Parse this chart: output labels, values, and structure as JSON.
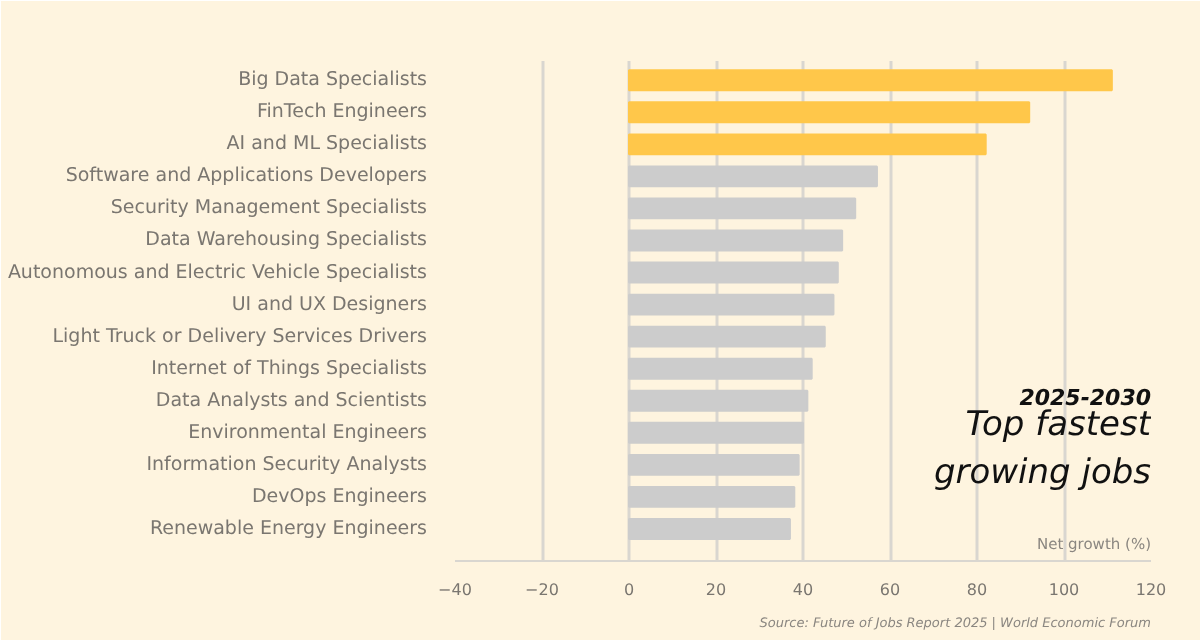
{
  "chart_data": {
    "type": "bar",
    "orientation": "horizontal",
    "title": "Top fastest growing jobs",
    "subtitle": "2025-2030",
    "xlabel": "Net growth (%)",
    "categories": [
      "Big Data Specialists",
      "FinTech Engineers",
      "AI and ML Specialists",
      "Software and Applications Developers",
      "Security Management Specialists",
      "Data Warehousing Specialists",
      "Autonomous and Electric Vehicle Specialists",
      "UI and UX Designers",
      "Light Truck or Delivery Services Drivers",
      "Internet of Things Specialists",
      "Data Analysts and Scientists",
      "Environmental Engineers",
      "Information Security Analysts",
      "DevOps Engineers",
      "Renewable Energy Engineers"
    ],
    "values": [
      111,
      92,
      82,
      57,
      52,
      49,
      48,
      47,
      45,
      42,
      41,
      40,
      39,
      38,
      37
    ],
    "colors": [
      "#ffc74a",
      "#ffc74a",
      "#ffc74a",
      "#cccccc",
      "#cccccc",
      "#cccccc",
      "#cccccc",
      "#cccccc",
      "#cccccc",
      "#cccccc",
      "#cccccc",
      "#cccccc",
      "#cccccc",
      "#cccccc",
      "#cccccc"
    ],
    "xlim": [
      -40,
      120
    ],
    "xticks": [
      -40,
      -20,
      0,
      20,
      40,
      60,
      80,
      100,
      120
    ],
    "grid": "x",
    "annotations": [
      "Source: Future of Jobs Report 2025 | World Economic Forum"
    ]
  }
}
